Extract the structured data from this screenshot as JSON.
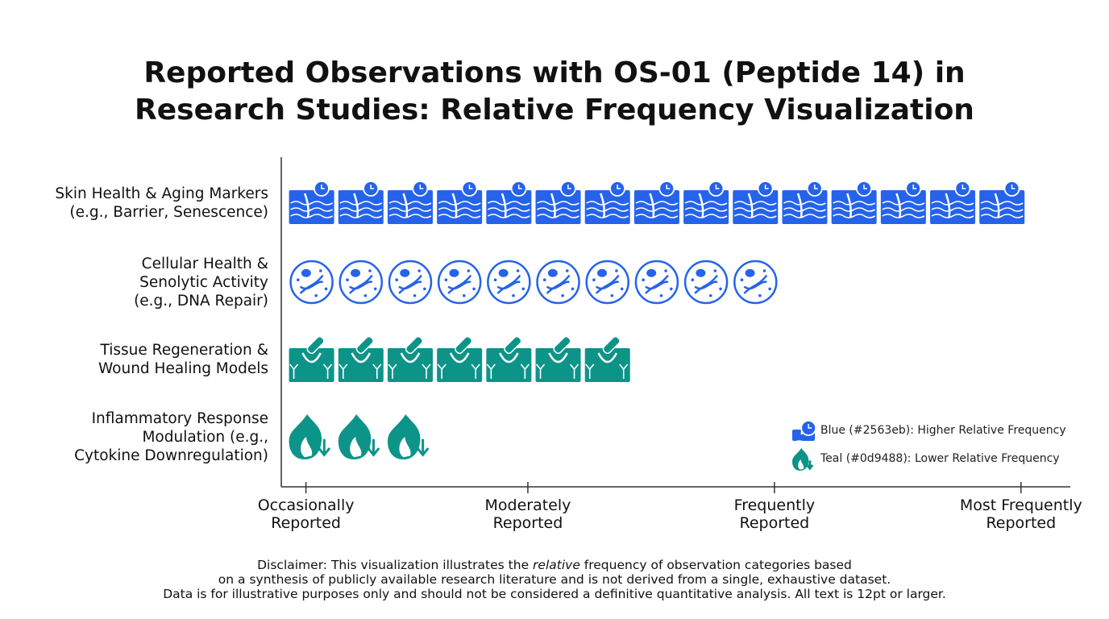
{
  "chart_data": {
    "type": "pictogram",
    "title": "Reported Observations with OS-01 (Peptide 14) in\nResearch Studies: Relative Frequency Visualization",
    "categories": [
      "Skin Health & Aging Markers\n(e.g., Barrier, Senescence)",
      "Cellular Health &\nSenolytic Activity\n(e.g., DNA Repair)",
      "Tissue Regeneration &\nWound Healing Models",
      "Inflammatory Response\nModulation (e.g.,\nCytokine Downregulation)"
    ],
    "values": [
      15,
      10,
      7,
      3
    ],
    "colors": [
      "#2563eb",
      "#2563eb",
      "#0d9488",
      "#0d9488"
    ],
    "xlim": [
      0,
      16
    ],
    "xticks": [
      {
        "value": 0.5,
        "label": "Occasionally\nReported"
      },
      {
        "value": 5,
        "label": "Moderately\nReported"
      },
      {
        "value": 10,
        "label": "Frequently\nReported"
      },
      {
        "value": 15,
        "label": "Most Frequently\nReported"
      }
    ],
    "legend": [
      {
        "label": "Blue (#2563eb): Higher Relative Frequency",
        "color": "#2563eb"
      },
      {
        "label": "Teal (#0d9488): Lower Relative Frequency",
        "color": "#0d9488"
      }
    ],
    "disclaimer": [
      "Disclaimer: This visualization illustrates the ",
      "relative",
      " frequency of observation categories based\non a synthesis of publicly available research literature and is not derived from a single, exhaustive dataset.\nData is for illustrative purposes only and should not be considered a definitive quantitative analysis. All text is 12pt or larger."
    ]
  }
}
